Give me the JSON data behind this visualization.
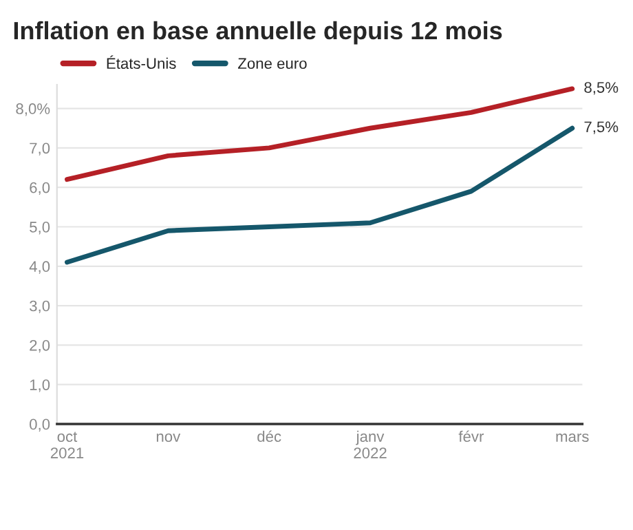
{
  "chart_data": {
    "type": "line",
    "title": "Inflation en base annuelle depuis 12 mois",
    "categories": [
      "oct\n2021",
      "nov",
      "déc",
      "janv\n2022",
      "févr",
      "mars"
    ],
    "series": [
      {
        "name": "États-Unis",
        "color": "#b52026",
        "values": [
          6.2,
          6.8,
          7.0,
          7.5,
          7.9,
          8.5
        ],
        "value_labels": [
          null,
          null,
          null,
          null,
          null,
          "8,5%"
        ]
      },
      {
        "name": "Zone euro",
        "color": "#15576b",
        "values": [
          4.1,
          4.9,
          5.0,
          5.1,
          5.9,
          7.5
        ],
        "value_labels": [
          null,
          null,
          null,
          null,
          null,
          "7,5%"
        ]
      }
    ],
    "ylim": [
      0,
      8.6
    ],
    "yticks": [
      {
        "value": 0,
        "label": "0,0"
      },
      {
        "value": 1,
        "label": "1,0"
      },
      {
        "value": 2,
        "label": "2,0"
      },
      {
        "value": 3,
        "label": "3,0"
      },
      {
        "value": 4,
        "label": "4,0"
      },
      {
        "value": 5,
        "label": "5,0"
      },
      {
        "value": 6,
        "label": "6,0"
      },
      {
        "value": 7,
        "label": "7,0"
      },
      {
        "value": 8,
        "label": "8,0%"
      }
    ],
    "grid": "y",
    "legend": "top left",
    "marker": "none",
    "line_style": "solid"
  }
}
